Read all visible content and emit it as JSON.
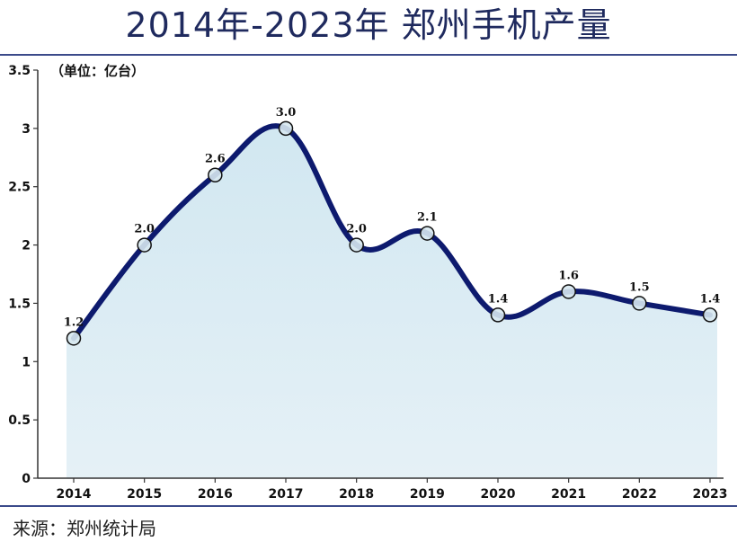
{
  "chart_data": {
    "type": "area",
    "title": "2014年-2023年 郑州手机产量",
    "unit_label": "（单位：亿台）",
    "categories": [
      "2014",
      "2015",
      "2016",
      "2017",
      "2018",
      "2019",
      "2020",
      "2021",
      "2022",
      "2023"
    ],
    "values": [
      1.2,
      2.0,
      2.6,
      3.0,
      2.0,
      2.1,
      1.4,
      1.6,
      1.5,
      1.4
    ],
    "value_labels": [
      "1.2",
      "2.0",
      "2.6",
      "3.0",
      "2.0",
      "2.1",
      "1.4",
      "1.6",
      "1.5",
      "1.4"
    ],
    "ylim": [
      0,
      3.5
    ],
    "yticks": [
      0,
      0.5,
      1,
      1.5,
      2,
      2.5,
      3,
      3.5
    ],
    "ytick_labels": [
      "0",
      "0.5",
      "1",
      "1.5",
      "2",
      "2.5",
      "3",
      "3.5"
    ],
    "grid": false,
    "colors": {
      "line": "#0d1a6e",
      "fill": "#cfe6f0",
      "title": "#1f2a5e"
    }
  },
  "source": "来源：郑州统计局"
}
